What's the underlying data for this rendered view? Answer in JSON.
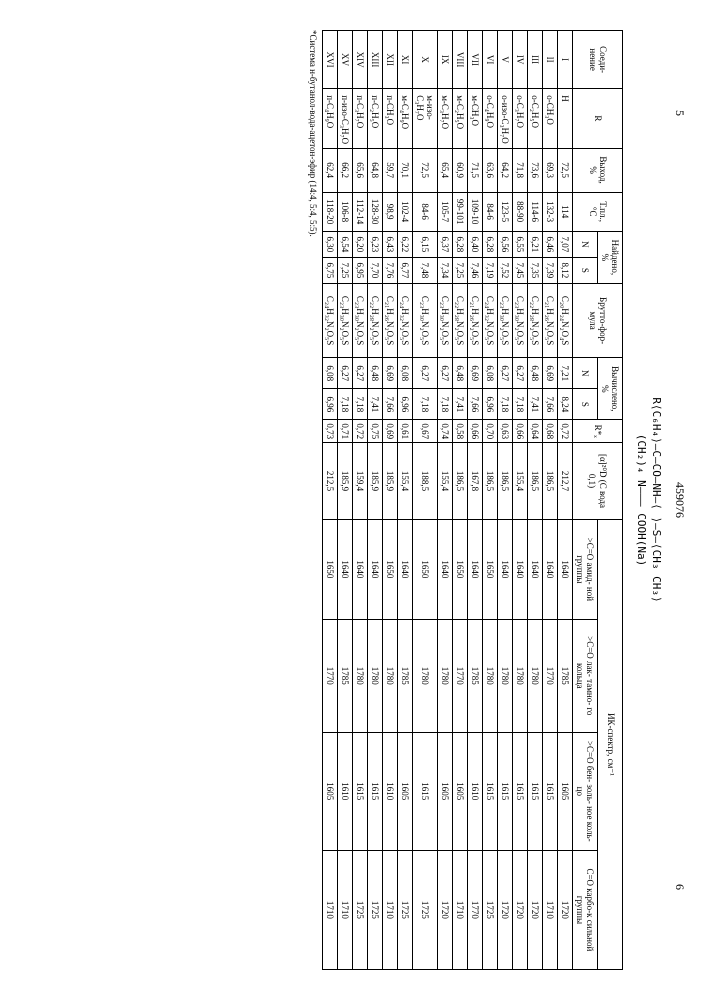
{
  "pageLeft": "5",
  "docNumber": "459076",
  "pageRight": "6",
  "structure": {
    "line1": "R⟨C₆H₄⟩—C—CO—NH—⟨ ⟩—S—⟨CH₃ CH₃⟩",
    "line2": "     (CH₂)₄        N——— COOH(Na)",
    "line3": "                    O"
  },
  "headers": {
    "compound": "Соеди-\nнение",
    "R": "R",
    "yield": "Выход,\n%",
    "mp": "Т.пл.,\n°C",
    "found": "Найдено, %",
    "brutto": "Брутто-фор-\nмула",
    "calc": "Вычислено, %",
    "rf": "R*ₓ",
    "alpha": "[α]²⁰D\n(C вода\n0,1)",
    "ir": "ИК-спектр, см⁻¹",
    "N": "N",
    "S": "S",
    "ir1": ">C=O\nамид-\nной\nгруппы",
    "ir2": ">C=O\nлак-\nтамно-\nго\nкольца",
    "ir3": ">C=O\nбен-\nзоль-\nное\nколь-\nцо",
    "ir4": "C=O\nкарбо-к\nсильной\nгруппы"
  },
  "footnote": "*Система н-бутанол-вода-ацетон-эфир (14:4, 5:4, 5:5).",
  "rows": [
    {
      "n": "I",
      "R": "H",
      "yield": "72,5",
      "mp": "114",
      "fN": "7,07",
      "fS": "8,12",
      "formula": "C₂₀H₂₄N₂O₄S",
      "cN": "7,21",
      "cS": "8,24",
      "rf": "0,72",
      "alpha": "212,7",
      "ir1": "1640",
      "ir2": "1785",
      "ir3": "1605",
      "ir4": "1720"
    },
    {
      "n": "II",
      "R": "о-CH₃O",
      "yield": "69,3",
      "mp": "132-3",
      "fN": "6,46",
      "fS": "7,39",
      "formula": "C₂₁H₂₆N₂O₅S",
      "cN": "6,69",
      "cS": "7,66",
      "rf": "0,68",
      "alpha": "186,5",
      "ir1": "1640",
      "ir2": "1770",
      "ir3": "1615",
      "ir4": "1710"
    },
    {
      "n": "III",
      "R": "о-C₂H₅O",
      "yield": "73,6",
      "mp": "114-6",
      "fN": "6,21",
      "fS": "7,35",
      "formula": "C₂₂H₂₈N₂O₅S",
      "cN": "6,48",
      "cS": "7,41",
      "rf": "0,64",
      "alpha": "186,5",
      "ir1": "1640",
      "ir2": "1780",
      "ir3": "1615",
      "ir4": "1720"
    },
    {
      "n": "IV",
      "R": "о-C₃H₇O",
      "yield": "71,8",
      "mp": "88-90",
      "fN": "6,55",
      "fS": "7,45",
      "formula": "C₂₃H₃₀N₂O₅S",
      "cN": "6,27",
      "cS": "7,18",
      "rf": "0,66",
      "alpha": "155,4",
      "ir1": "1640",
      "ir2": "1780",
      "ir3": "1615",
      "ir4": "1720"
    },
    {
      "n": "V",
      "R": "о-изо-C₃H₇O",
      "yield": "64,2",
      "mp": "123-5",
      "fN": "6,56",
      "fS": "7,52",
      "formula": "C₂₃H₃₀N₂O₅S",
      "cN": "6,27",
      "cS": "7,18",
      "rf": "0,63",
      "alpha": "186,5",
      "ir1": "1640",
      "ir2": "1780",
      "ir3": "1615",
      "ir4": "1720"
    },
    {
      "n": "VI",
      "R": "о-C₄H₉O",
      "yield": "63,6",
      "mp": "84-6",
      "fN": "6,28",
      "fS": "7,19",
      "formula": "C₂₄H₃₂N₂O₅S",
      "cN": "6,08",
      "cS": "6,96",
      "rf": "0,70",
      "alpha": "186,5",
      "ir1": "1650",
      "ir2": "1780",
      "ir3": "1615",
      "ir4": "1725"
    },
    {
      "n": "VII",
      "R": "м-CH₃O",
      "yield": "71,5",
      "mp": "109-10",
      "fN": "6,40",
      "fS": "7,46",
      "formula": "C₂₁H₂₆N₂O₅S",
      "cN": "6,69",
      "cS": "7,66",
      "rf": "0,66",
      "alpha": "167,8",
      "ir1": "1640",
      "ir2": "1785",
      "ir3": "1610",
      "ir4": "1770"
    },
    {
      "n": "VIII",
      "R": "м-C₂H₅O",
      "yield": "60,9",
      "mp": "99-101",
      "fN": "6,28",
      "fS": "7,25",
      "formula": "C₂₂H₂₈N₂O₅S",
      "cN": "6,48",
      "cS": "7,41",
      "rf": "0,58",
      "alpha": "186,5",
      "ir1": "1650",
      "ir2": "1770",
      "ir3": "1605",
      "ir4": "1710"
    },
    {
      "n": "IX",
      "R": "м-C₃H₇O",
      "yield": "65,4",
      "mp": "105-7",
      "fN": "6,37",
      "fS": "7,34",
      "formula": "C₂₃H₃₀N₂O₅S",
      "cN": "6,27",
      "cS": "7,18",
      "rf": "0,74",
      "alpha": "155,4",
      "ir1": "1640",
      "ir2": "1780",
      "ir3": "1605",
      "ir4": "1720"
    },
    {
      "n": "X",
      "R": "м-изо-C₃H₇O",
      "yield": "72,5",
      "mp": "84-6",
      "fN": "6,15",
      "fS": "7,48",
      "formula": "C₂₃H₃₀N₂O₅S",
      "cN": "6,27",
      "cS": "7,18",
      "rf": "0,67",
      "alpha": "188,5",
      "ir1": "1650",
      "ir2": "1780",
      "ir3": "1615",
      "ir4": "1725"
    },
    {
      "n": "XI",
      "R": "м-C₄H₉O",
      "yield": "70,1",
      "mp": "102-4",
      "fN": "6,22",
      "fS": "6,77",
      "formula": "C₂₄H₃₂N₂O₅S",
      "cN": "6,08",
      "cS": "6,96",
      "rf": "0,61",
      "alpha": "155,4",
      "ir1": "1640",
      "ir2": "1785",
      "ir3": "1605",
      "ir4": "1725"
    },
    {
      "n": "XII",
      "R": "п-CH₃O",
      "yield": "59,7",
      "mp": "98,9",
      "fN": "6,43",
      "fS": "7,76",
      "formula": "C₂₁H₂₆N₂O₅S",
      "cN": "6,69",
      "cS": "7,66",
      "rf": "0,69",
      "alpha": "185,9",
      "ir1": "1650",
      "ir2": "1780",
      "ir3": "1610",
      "ir4": "1710"
    },
    {
      "n": "XIII",
      "R": "п-C₂H₅O",
      "yield": "64,8",
      "mp": "128-30",
      "fN": "6,23",
      "fS": "7,70",
      "formula": "C₂₂H₂₈N₂O₅S",
      "cN": "6,48",
      "cS": "7,41",
      "rf": "0,75",
      "alpha": "185,9",
      "ir1": "1640",
      "ir2": "1780",
      "ir3": "1615",
      "ir4": "1725"
    },
    {
      "n": "XIV",
      "R": "п-C₃H₇O",
      "yield": "65,6",
      "mp": "112-14",
      "fN": "6,20",
      "fS": "6,95",
      "formula": "C₂₃H₃₀N₂O₅S",
      "cN": "6,27",
      "cS": "7,18",
      "rf": "0,72",
      "alpha": "159,4",
      "ir1": "1640",
      "ir2": "1780",
      "ir3": "1615",
      "ir4": "1725"
    },
    {
      "n": "XV",
      "R": "п-изо-C₃H₇O",
      "yield": "66,2",
      "mp": "106-8",
      "fN": "6,54",
      "fS": "7,25",
      "formula": "C₂₃H₃₀N₂O₅S",
      "cN": "6,27",
      "cS": "7,18",
      "rf": "0,71",
      "alpha": "185,9",
      "ir1": "1640",
      "ir2": "1785",
      "ir3": "1610",
      "ir4": "1710"
    },
    {
      "n": "XVI",
      "R": "п-C₄H₉O",
      "yield": "62,4",
      "mp": "118-20",
      "fN": "6,30",
      "fS": "6,75",
      "formula": "C₂₄H₃₂N₂O₅S",
      "cN": "6,08",
      "cS": "6,96",
      "rf": "0,73",
      "alpha": "212,5",
      "ir1": "1650",
      "ir2": "1770",
      "ir3": "1605",
      "ir4": "1710"
    }
  ]
}
